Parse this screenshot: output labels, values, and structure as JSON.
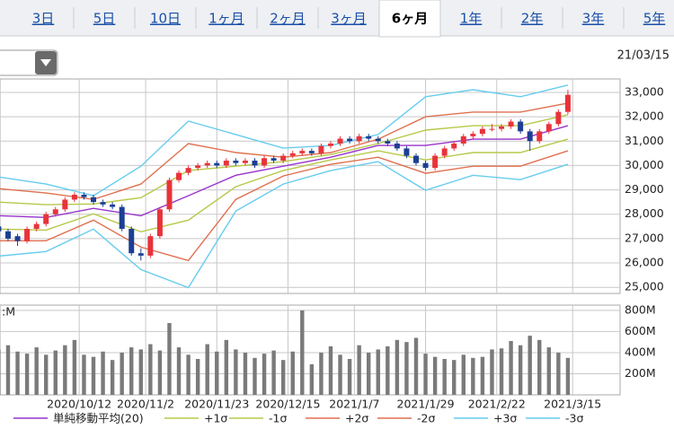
{
  "tabs": {
    "items": [
      "3日",
      "5日",
      "10日",
      "1ヶ月",
      "2ヶ月",
      "3ヶ月",
      "6ヶ月",
      "1年",
      "2年",
      "3年",
      "5年"
    ],
    "selected": 6
  },
  "date": "21/03/15",
  "chart_data": [
    {
      "type": "candlestick",
      "x": [
        0,
        2,
        4,
        6,
        8,
        10,
        12,
        14,
        16,
        18,
        20,
        22,
        24,
        26,
        28,
        30,
        32,
        34,
        36,
        38,
        40,
        42,
        44,
        46,
        48,
        50,
        52,
        54,
        56,
        58,
        60,
        62,
        64,
        66,
        68,
        70,
        72,
        74,
        76,
        78,
        80,
        82,
        84,
        86,
        88,
        90,
        92,
        94,
        96,
        98,
        100,
        102,
        104,
        106,
        108,
        110,
        112,
        114,
        116,
        118,
        120
      ],
      "open": [
        27500,
        27300,
        27100,
        26900,
        27400,
        27600,
        28000,
        28200,
        28600,
        28800,
        28700,
        28500,
        28400,
        28300,
        27400,
        26400,
        26300,
        27100,
        28200,
        29400,
        29700,
        29900,
        30000,
        30100,
        30000,
        30200,
        30100,
        30200,
        30000,
        30300,
        30200,
        30400,
        30500,
        30600,
        30500,
        30800,
        30900,
        31100,
        31000,
        31200,
        31100,
        31000,
        30900,
        30700,
        30400,
        30100,
        29900,
        30400,
        30700,
        30900,
        31200,
        31300,
        31500,
        31500,
        31600,
        31800,
        31400,
        31000,
        31400,
        31700,
        32200
      ],
      "high": [
        27600,
        27400,
        27200,
        27500,
        27700,
        28100,
        28300,
        28700,
        28900,
        28900,
        28800,
        28600,
        28500,
        28400,
        27500,
        26600,
        27200,
        28300,
        29500,
        29800,
        30000,
        30100,
        30200,
        30200,
        30300,
        30300,
        30300,
        30300,
        30400,
        30400,
        30500,
        30600,
        30700,
        30700,
        30900,
        31000,
        31200,
        31200,
        31300,
        31300,
        31200,
        31100,
        31000,
        30800,
        30500,
        30200,
        30500,
        30800,
        31000,
        31300,
        31400,
        31600,
        31700,
        31700,
        31900,
        31900,
        31500,
        31500,
        31800,
        32300,
        33100
      ],
      "low": [
        27200,
        26900,
        26700,
        26800,
        27300,
        27500,
        27900,
        28100,
        28500,
        28600,
        28400,
        28300,
        28200,
        27300,
        26300,
        26100,
        26200,
        27000,
        28100,
        29300,
        29600,
        29800,
        29900,
        29900,
        29900,
        30000,
        30000,
        29900,
        29900,
        30100,
        30100,
        30300,
        30400,
        30400,
        30400,
        30700,
        30800,
        30900,
        30900,
        31000,
        30900,
        30800,
        30600,
        30300,
        30000,
        29800,
        29800,
        30300,
        30600,
        30800,
        31100,
        31200,
        31400,
        31400,
        31500,
        31300,
        30600,
        30900,
        31300,
        31600,
        32100
      ],
      "close": [
        27300,
        27000,
        26900,
        27400,
        27600,
        28000,
        28200,
        28600,
        28800,
        28700,
        28500,
        28400,
        28300,
        27400,
        26400,
        26300,
        27100,
        28200,
        29400,
        29700,
        29900,
        30000,
        30100,
        30000,
        30200,
        30100,
        30200,
        30000,
        30300,
        30200,
        30400,
        30500,
        30600,
        30500,
        30800,
        30900,
        31100,
        31000,
        31200,
        31100,
        31000,
        30900,
        30700,
        30400,
        30100,
        29900,
        30400,
        30700,
        30900,
        31200,
        31300,
        31500,
        31500,
        31600,
        31800,
        31400,
        31000,
        31400,
        31700,
        32200,
        32900
      ],
      "up_color": "#e8333a",
      "down_color": "#1c3f94",
      "series": [
        {
          "name": "単純移動平均(20)",
          "color": "#9933cc",
          "x": [
            0,
            10,
            20,
            30,
            40,
            50,
            60,
            70,
            80,
            90,
            100,
            110,
            120
          ],
          "values": [
            27940,
            27870,
            28240,
            27940,
            28760,
            29600,
            29970,
            30340,
            30820,
            30820,
            31080,
            31080,
            31630
          ]
        },
        {
          "name": "+1σ",
          "color": "#b8c848",
          "x": [
            0,
            10,
            20,
            30,
            40,
            50,
            60,
            70,
            80,
            90,
            100,
            110,
            120
          ],
          "values": [
            28500,
            28390,
            28420,
            28680,
            29790,
            29970,
            30160,
            30450,
            30900,
            31450,
            31630,
            31630,
            32080
          ]
        },
        {
          "name": "-1σ",
          "color": "#b8c848",
          "x": [
            0,
            10,
            20,
            30,
            40,
            50,
            60,
            70,
            80,
            90,
            100,
            110,
            120
          ],
          "values": [
            27390,
            27350,
            28020,
            27280,
            27760,
            29130,
            29790,
            30230,
            30600,
            30230,
            30530,
            30530,
            31080
          ]
        },
        {
          "name": "+2σ",
          "color": "#e07050",
          "x": [
            0,
            10,
            20,
            30,
            40,
            50,
            60,
            70,
            80,
            90,
            100,
            110,
            120
          ],
          "values": [
            29050,
            28870,
            28610,
            29240,
            30900,
            30530,
            30340,
            30530,
            31080,
            32000,
            32190,
            32190,
            32560
          ]
        },
        {
          "name": "-2σ",
          "color": "#e07050",
          "x": [
            0,
            10,
            20,
            30,
            40,
            50,
            60,
            70,
            80,
            90,
            100,
            110,
            120
          ],
          "values": [
            26910,
            26910,
            27760,
            26650,
            26100,
            28610,
            29570,
            30050,
            30340,
            29680,
            29970,
            29970,
            30600
          ]
        },
        {
          "name": "+3σ",
          "color": "#66ccee",
          "x": [
            0,
            10,
            20,
            30,
            40,
            50,
            60,
            70,
            80,
            90,
            100,
            110,
            120
          ],
          "values": [
            29530,
            29240,
            28760,
            29970,
            31820,
            31270,
            30710,
            30820,
            31270,
            32820,
            33110,
            32820,
            33300
          ]
        },
        {
          "name": "-3σ",
          "color": "#66ccee",
          "x": [
            0,
            10,
            20,
            30,
            40,
            50,
            60,
            70,
            80,
            90,
            100,
            110,
            120
          ],
          "values": [
            26280,
            26470,
            27390,
            25730,
            24990,
            28130,
            29240,
            29790,
            30160,
            28980,
            29600,
            29420,
            30050
          ]
        }
      ],
      "xlim": [
        0.3,
        131
      ],
      "ylim": [
        24750,
        33550
      ],
      "yticks": [
        {
          "value": 25000,
          "label": "25,000"
        },
        {
          "value": 26000,
          "label": "26,000"
        },
        {
          "value": 27000,
          "label": "27,000"
        },
        {
          "value": 28000,
          "label": "28,000"
        },
        {
          "value": 29000,
          "label": "29,000"
        },
        {
          "value": 30000,
          "label": "30,000"
        },
        {
          "value": 31000,
          "label": "31,000"
        },
        {
          "value": 32000,
          "label": "32,000"
        },
        {
          "value": 33000,
          "label": "33,000"
        }
      ],
      "grid": true
    },
    {
      "type": "bar",
      "unit_label": ":M",
      "x": [
        0,
        2,
        4,
        6,
        8,
        10,
        12,
        14,
        16,
        18,
        20,
        22,
        24,
        26,
        28,
        30,
        32,
        34,
        36,
        38,
        40,
        42,
        44,
        46,
        48,
        50,
        52,
        54,
        56,
        58,
        60,
        62,
        64,
        66,
        68,
        70,
        72,
        74,
        76,
        78,
        80,
        82,
        84,
        86,
        88,
        90,
        92,
        94,
        96,
        98,
        100,
        102,
        104,
        106,
        108,
        110,
        112,
        114,
        116,
        118,
        120
      ],
      "values": [
        430,
        470,
        410,
        390,
        450,
        380,
        420,
        470,
        520,
        380,
        360,
        410,
        330,
        400,
        450,
        430,
        480,
        420,
        680,
        450,
        380,
        340,
        480,
        410,
        520,
        430,
        400,
        350,
        390,
        420,
        330,
        410,
        800,
        290,
        400,
        460,
        380,
        340,
        470,
        400,
        430,
        460,
        520,
        500,
        540,
        390,
        360,
        340,
        330,
        380,
        350,
        360,
        430,
        440,
        510,
        470,
        560,
        520,
        450,
        400,
        350
      ],
      "color": "#7a7a7a",
      "xlim": [
        0.3,
        131
      ],
      "xticks": [
        {
          "value": 17,
          "label": "2020/10/12"
        },
        {
          "value": 31,
          "label": "2020/11/2"
        },
        {
          "value": 46,
          "label": "2020/11/23"
        },
        {
          "value": 61,
          "label": "2020/12/15"
        },
        {
          "value": 75,
          "label": "2021/1/7"
        },
        {
          "value": 90,
          "label": "2021/1/29"
        },
        {
          "value": 105,
          "label": "2021/2/22"
        },
        {
          "value": 121,
          "label": "2021/3/15"
        }
      ],
      "ylim": [
        0,
        850
      ],
      "yticks": [
        {
          "value": 200,
          "label": "200M"
        },
        {
          "value": 400,
          "label": "400M"
        },
        {
          "value": 600,
          "label": "600M"
        },
        {
          "value": 800,
          "label": "800M"
        }
      ],
      "grid": true
    }
  ]
}
